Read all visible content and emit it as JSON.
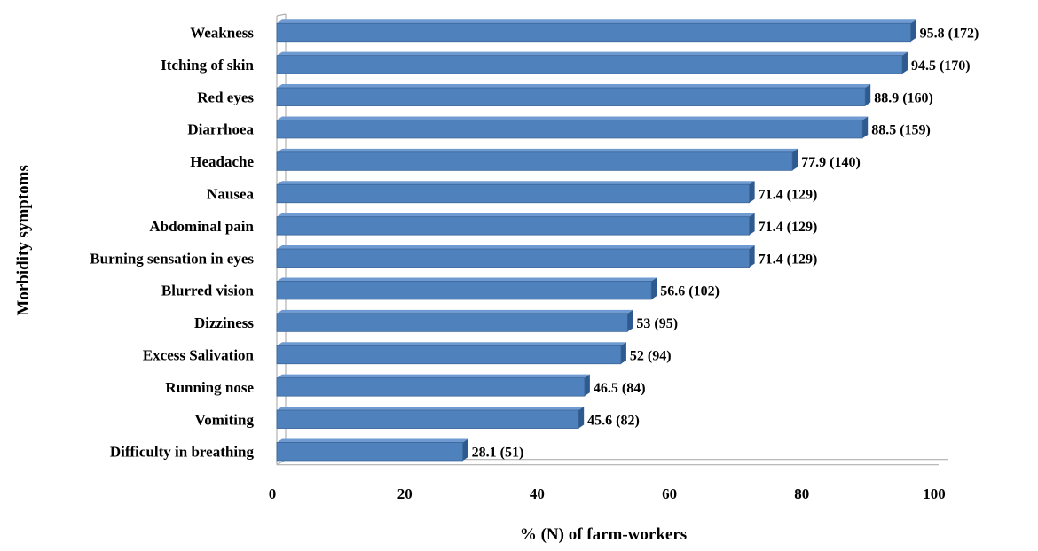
{
  "chart_data": {
    "type": "bar",
    "orientation": "horizontal",
    "categories": [
      "Weakness",
      "Itching of skin",
      "Red eyes",
      "Diarrhoea",
      "Headache",
      "Nausea",
      "Abdominal pain",
      "Burning sensation in eyes",
      "Blurred vision",
      "Dizziness",
      "Excess Salivation",
      "Running nose",
      "Vomiting",
      "Difficulty in breathing"
    ],
    "values": [
      95.8,
      94.5,
      88.9,
      88.5,
      77.9,
      71.4,
      71.4,
      71.4,
      56.6,
      53,
      52,
      46.5,
      45.6,
      28.1
    ],
    "data_labels": [
      "95.8 (172)",
      "94.5 (170)",
      "88.9 (160)",
      "88.5 (159)",
      "77.9 (140)",
      "71.4 (129)",
      "71.4 (129)",
      "71.4 (129)",
      "56.6 (102)",
      "53 (95)",
      "52 (94)",
      "46.5 (84)",
      "45.6 (82)",
      "28.1 (51)"
    ],
    "xlabel": "% (N) of farm-workers",
    "ylabel": "Morbidity symptoms",
    "xlim": [
      0,
      100
    ],
    "xticks": [
      "0",
      "20",
      "40",
      "60",
      "80",
      "100"
    ],
    "grid": false,
    "legend": "none",
    "style": "3d",
    "colors": {
      "bar_front": "#4F81BD",
      "bar_top": "#6F9BD2",
      "bar_side": "#2F5A8F",
      "bar_edge": "#3A6699",
      "wall": "#B0B0B0"
    }
  }
}
